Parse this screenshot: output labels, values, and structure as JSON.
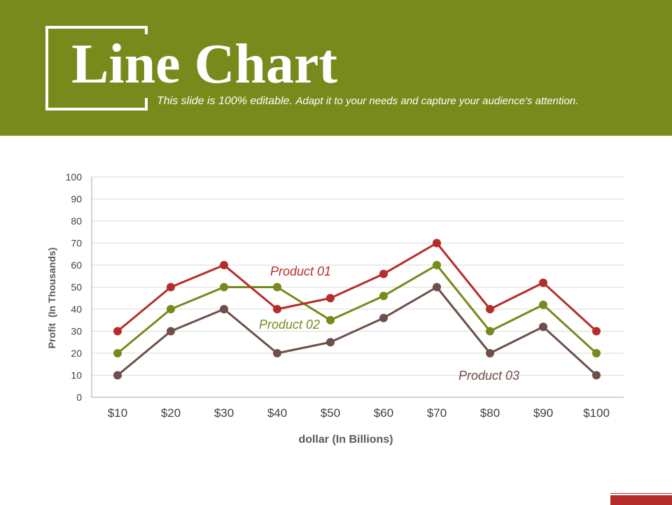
{
  "header": {
    "title": "Line Chart",
    "subtitle_bold": "This slide is 100% editable.",
    "subtitle_rest": "Adapt it to your needs and capture your audience's attention."
  },
  "colors": {
    "header_bg": "#778a1b",
    "product_01": "#b52d2a",
    "product_02": "#778a1b",
    "product_03": "#6e4f4a",
    "footer_accent": "#b52d2a"
  },
  "chart_data": {
    "type": "line",
    "categories": [
      "$10",
      "$20",
      "$30",
      "$40",
      "$50",
      "$60",
      "$70",
      "$80",
      "$90",
      "$100"
    ],
    "series": [
      {
        "name": "Product 01",
        "values": [
          30,
          50,
          60,
          40,
          45,
          56,
          70,
          40,
          52,
          30
        ]
      },
      {
        "name": "Product 02",
        "values": [
          20,
          40,
          50,
          50,
          35,
          46,
          60,
          30,
          42,
          20
        ]
      },
      {
        "name": "Product 03",
        "values": [
          10,
          30,
          40,
          20,
          25,
          36,
          50,
          20,
          32,
          10
        ]
      }
    ],
    "xlabel": "dollar (In Billions)",
    "ylabel": "Profit  (In Thousands)",
    "ylim": [
      0,
      100
    ],
    "yticks": [
      "0",
      "10",
      "20",
      "30",
      "40",
      "50",
      "60",
      "70",
      "80",
      "90",
      "100"
    ],
    "grid": true,
    "legend": "inline labels"
  }
}
